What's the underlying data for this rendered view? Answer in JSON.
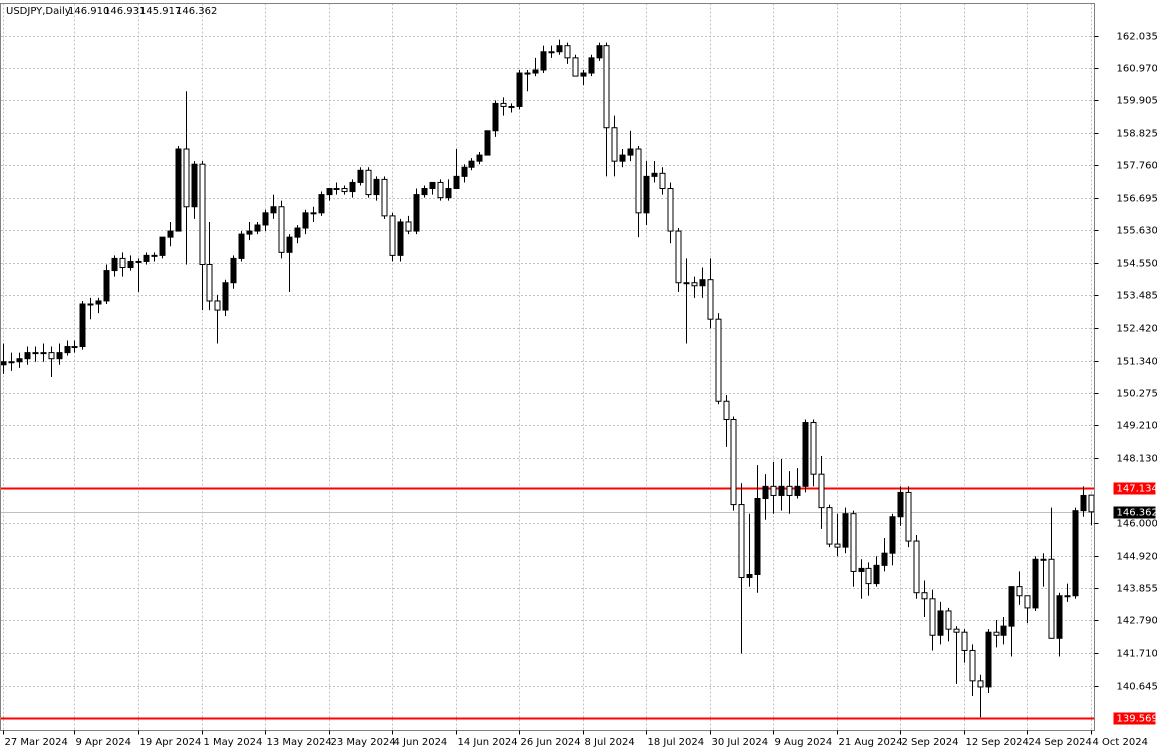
{
  "chart_data": {
    "type": "candlestick",
    "header": {
      "symbol": "USDJPY,Daily",
      "values": [
        "146.910",
        "146.931",
        "145.917",
        "146.362"
      ]
    },
    "ylim": [
      139.166,
      163.088
    ],
    "yticks": [
      162.035,
      {
        "value": 160.97,
        "label": "160.970"
      },
      159.905,
      158.825,
      {
        "value": 157.76,
        "label": "157.760"
      },
      156.695,
      {
        "value": 155.63,
        "label": "155.630"
      },
      {
        "value": 154.55,
        "label": "154.550"
      },
      153.485,
      {
        "value": 152.42,
        "label": "152.420"
      },
      {
        "value": 151.34,
        "label": "151.340"
      },
      150.275,
      {
        "value": 149.21,
        "label": "149.210"
      },
      {
        "value": 148.13,
        "label": "148.130"
      },
      {
        "value": 146,
        "label": "146.000"
      },
      {
        "value": 144.92,
        "label": "144.920"
      },
      143.855,
      {
        "value": 142.79,
        "label": "142.790"
      },
      {
        "value": 141.71,
        "label": "141.710"
      },
      140.645
    ],
    "grid": true,
    "bull_color": "#000000",
    "bear_color": "#ffffff",
    "hlines": [
      {
        "value": 147.134,
        "color": "#ff0000",
        "width": 2
      },
      {
        "value": 139.569,
        "color": "#ff0000",
        "width": 2
      },
      {
        "value": 146.362,
        "color": "#c0c0c0",
        "width": 1,
        "label_color": "#000000"
      }
    ],
    "categories": [
      "27 Mar 2024",
      null,
      null,
      null,
      null,
      null,
      null,
      null,
      null,
      "9 Apr 2024",
      null,
      null,
      null,
      null,
      null,
      null,
      null,
      "19 Apr 2024",
      null,
      null,
      null,
      null,
      null,
      null,
      null,
      "1 May 2024",
      null,
      null,
      null,
      null,
      null,
      null,
      null,
      "13 May 2024",
      null,
      null,
      null,
      null,
      null,
      null,
      null,
      "23 May 2024",
      null,
      null,
      null,
      null,
      null,
      null,
      null,
      "4 Jun 2024",
      null,
      null,
      null,
      null,
      null,
      null,
      null,
      "14 Jun 2024",
      null,
      null,
      null,
      null,
      null,
      null,
      null,
      "26 Jun 2024",
      null,
      null,
      null,
      null,
      null,
      null,
      null,
      "8 Jul 2024",
      null,
      null,
      null,
      null,
      null,
      null,
      null,
      "18 Jul 2024",
      null,
      null,
      null,
      null,
      null,
      null,
      null,
      "30 Jul 2024",
      null,
      null,
      null,
      null,
      null,
      null,
      null,
      "9 Aug 2024",
      null,
      null,
      null,
      null,
      null,
      null,
      null,
      "21 Aug 2024",
      null,
      null,
      null,
      null,
      null,
      null,
      null,
      "2 Sep 2024",
      null,
      null,
      null,
      null,
      null,
      null,
      null,
      "12 Sep 2024",
      null,
      null,
      null,
      null,
      null,
      null,
      null,
      "24 Sep 2024",
      null,
      null,
      null,
      null,
      null,
      null,
      null,
      "4 Oct 2024"
    ],
    "ohlc": [
      [
        151.2,
        151.9,
        150.9,
        151.3
      ],
      [
        151.3,
        151.6,
        151.0,
        151.3
      ],
      [
        151.3,
        151.6,
        151.1,
        151.4
      ],
      [
        151.4,
        151.8,
        151.2,
        151.6
      ],
      [
        151.6,
        151.8,
        151.3,
        151.6
      ],
      [
        151.6,
        151.9,
        151.3,
        151.6
      ],
      [
        151.6,
        151.8,
        150.8,
        151.4
      ],
      [
        151.4,
        151.9,
        151.2,
        151.6
      ],
      [
        151.6,
        152.0,
        151.5,
        151.8
      ],
      [
        151.8,
        152.0,
        151.6,
        151.8
      ],
      [
        151.8,
        153.3,
        151.7,
        153.2
      ],
      [
        153.2,
        153.4,
        152.7,
        153.2
      ],
      [
        153.2,
        153.4,
        152.9,
        153.3
      ],
      [
        153.3,
        154.5,
        153.2,
        154.3
      ],
      [
        154.3,
        154.8,
        154.1,
        154.7
      ],
      [
        154.7,
        154.9,
        154.1,
        154.4
      ],
      [
        154.4,
        154.8,
        154.3,
        154.6
      ],
      [
        154.6,
        154.7,
        153.6,
        154.6
      ],
      [
        154.6,
        154.9,
        154.5,
        154.8
      ],
      [
        154.8,
        154.9,
        154.6,
        154.8
      ],
      [
        154.8,
        155.4,
        154.7,
        155.4
      ],
      [
        155.4,
        155.9,
        155.1,
        155.6
      ],
      [
        155.6,
        158.4,
        155.6,
        158.3
      ],
      [
        158.3,
        160.2,
        154.5,
        156.4
      ],
      [
        156.4,
        157.9,
        156.0,
        157.8
      ],
      [
        157.8,
        157.9,
        153.0,
        154.5
      ],
      [
        154.5,
        155.9,
        153.0,
        153.3
      ],
      [
        153.3,
        153.5,
        151.9,
        153.0
      ],
      [
        153.0,
        154.0,
        152.8,
        153.9
      ],
      [
        153.9,
        154.8,
        153.7,
        154.7
      ],
      [
        154.7,
        155.6,
        154.6,
        155.5
      ],
      [
        155.5,
        155.9,
        155.3,
        155.6
      ],
      [
        155.6,
        155.9,
        155.5,
        155.8
      ],
      [
        155.8,
        156.3,
        155.6,
        156.2
      ],
      [
        156.2,
        156.8,
        156.0,
        156.4
      ],
      [
        156.4,
        156.6,
        154.7,
        154.9
      ],
      [
        154.9,
        155.5,
        153.6,
        155.4
      ],
      [
        155.4,
        155.8,
        155.2,
        155.7
      ],
      [
        155.7,
        156.3,
        155.5,
        156.2
      ],
      [
        156.2,
        156.4,
        155.9,
        156.2
      ],
      [
        156.2,
        156.9,
        156.1,
        156.8
      ],
      [
        156.8,
        157.0,
        156.6,
        157.0
      ],
      [
        157.0,
        157.2,
        156.8,
        157.0
      ],
      [
        157.0,
        157.1,
        156.8,
        156.9
      ],
      [
        156.9,
        157.3,
        156.7,
        157.2
      ],
      [
        157.2,
        157.7,
        157.1,
        157.6
      ],
      [
        157.6,
        157.7,
        156.7,
        156.8
      ],
      [
        156.8,
        157.4,
        156.6,
        157.3
      ],
      [
        157.3,
        157.4,
        156.0,
        156.1
      ],
      [
        156.1,
        156.2,
        154.6,
        154.8
      ],
      [
        154.8,
        156.0,
        154.6,
        155.9
      ],
      [
        155.9,
        156.1,
        155.5,
        155.6
      ],
      [
        155.6,
        157.0,
        155.5,
        156.8
      ],
      [
        156.8,
        157.1,
        156.7,
        157.0
      ],
      [
        157.0,
        157.2,
        156.8,
        157.2
      ],
      [
        157.2,
        157.3,
        156.6,
        156.7
      ],
      [
        156.7,
        157.3,
        156.6,
        157.0
      ],
      [
        157.0,
        158.3,
        157.0,
        157.4
      ],
      [
        157.4,
        157.8,
        157.2,
        157.7
      ],
      [
        157.7,
        158.0,
        157.6,
        157.9
      ],
      [
        157.9,
        158.2,
        157.8,
        158.1
      ],
      [
        158.1,
        158.9,
        158.1,
        158.9
      ],
      [
        158.9,
        159.9,
        158.7,
        159.8
      ],
      [
        159.8,
        160.0,
        159.4,
        159.7
      ],
      [
        159.7,
        159.8,
        159.5,
        159.7
      ],
      [
        159.7,
        160.9,
        159.6,
        160.8
      ],
      [
        160.8,
        160.9,
        160.2,
        160.8
      ],
      [
        160.8,
        161.3,
        160.7,
        160.9
      ],
      [
        160.9,
        161.7,
        160.8,
        161.5
      ],
      [
        161.5,
        161.7,
        161.3,
        161.5
      ],
      [
        161.5,
        161.9,
        161.4,
        161.7
      ],
      [
        161.7,
        161.8,
        161.1,
        161.3
      ],
      [
        161.3,
        161.4,
        160.7,
        160.7
      ],
      [
        160.7,
        160.9,
        160.4,
        160.8
      ],
      [
        160.8,
        161.4,
        160.7,
        161.3
      ],
      [
        161.3,
        161.8,
        161.2,
        161.7
      ],
      [
        161.7,
        161.8,
        157.4,
        159.0
      ],
      [
        159.0,
        159.4,
        157.4,
        157.9
      ],
      [
        157.9,
        158.3,
        157.7,
        158.1
      ],
      [
        158.1,
        158.9,
        157.9,
        158.3
      ],
      [
        158.3,
        158.4,
        155.4,
        156.2
      ],
      [
        156.2,
        157.9,
        155.8,
        157.4
      ],
      [
        157.4,
        157.9,
        157.2,
        157.5
      ],
      [
        157.5,
        157.7,
        156.8,
        157.0
      ],
      [
        157.0,
        157.2,
        155.2,
        155.6
      ],
      [
        155.6,
        155.7,
        153.6,
        153.9
      ],
      [
        153.9,
        154.7,
        151.9,
        153.9
      ],
      [
        153.9,
        154.1,
        153.4,
        153.8
      ],
      [
        153.8,
        154.4,
        153.4,
        154.0
      ],
      [
        154.0,
        154.7,
        152.4,
        152.7
      ],
      [
        152.7,
        152.9,
        149.9,
        150.0
      ],
      [
        150.0,
        150.2,
        148.5,
        149.4
      ],
      [
        149.4,
        149.5,
        146.4,
        146.6
      ],
      [
        146.6,
        147.3,
        141.7,
        144.2
      ],
      [
        144.2,
        146.3,
        143.9,
        144.3
      ],
      [
        144.3,
        147.9,
        143.7,
        146.8
      ],
      [
        146.8,
        147.6,
        146.1,
        147.2
      ],
      [
        147.2,
        148.0,
        146.3,
        146.9
      ],
      [
        146.9,
        148.1,
        146.4,
        147.2
      ],
      [
        147.2,
        147.7,
        146.3,
        146.9
      ],
      [
        146.9,
        147.8,
        146.8,
        147.2
      ],
      [
        147.2,
        149.4,
        147.0,
        149.3
      ],
      [
        149.3,
        149.4,
        147.2,
        147.6
      ],
      [
        147.6,
        148.2,
        145.8,
        146.5
      ],
      [
        146.5,
        146.6,
        145.2,
        145.3
      ],
      [
        145.3,
        146.3,
        144.9,
        145.2
      ],
      [
        145.2,
        146.5,
        145.0,
        146.3
      ],
      [
        146.3,
        146.4,
        143.9,
        144.4
      ],
      [
        144.4,
        144.8,
        143.5,
        144.5
      ],
      [
        144.5,
        144.7,
        143.6,
        144.0
      ],
      [
        144.0,
        144.9,
        143.9,
        144.6
      ],
      [
        144.6,
        145.5,
        144.4,
        145.0
      ],
      [
        145.0,
        146.3,
        144.6,
        146.2
      ],
      [
        146.2,
        147.2,
        145.9,
        147.0
      ],
      [
        147.0,
        147.2,
        145.2,
        145.4
      ],
      [
        145.4,
        145.6,
        143.5,
        143.7
      ],
      [
        143.7,
        144.1,
        142.9,
        143.5
      ],
      [
        143.5,
        143.8,
        141.8,
        142.3
      ],
      [
        142.3,
        143.4,
        142.0,
        143.1
      ],
      [
        143.1,
        143.2,
        142.1,
        142.5
      ],
      [
        142.5,
        142.6,
        140.7,
        142.4
      ],
      [
        142.4,
        142.5,
        141.4,
        141.8
      ],
      [
        141.8,
        142.0,
        140.3,
        140.8
      ],
      [
        140.8,
        141.0,
        139.6,
        140.6
      ],
      [
        140.6,
        142.5,
        140.4,
        142.4
      ],
      [
        142.4,
        142.8,
        141.9,
        142.3
      ],
      [
        142.3,
        142.9,
        142.0,
        142.6
      ],
      [
        142.6,
        143.9,
        141.6,
        143.9
      ],
      [
        143.9,
        144.4,
        143.3,
        143.6
      ],
      [
        143.6,
        143.6,
        142.7,
        143.2
      ],
      [
        143.2,
        144.9,
        143.1,
        144.8
      ],
      [
        144.8,
        145.0,
        143.9,
        144.8
      ],
      [
        144.8,
        146.5,
        142.2,
        142.2
      ],
      [
        142.2,
        143.7,
        141.6,
        143.6
      ],
      [
        143.6,
        144.0,
        143.4,
        143.6
      ],
      [
        143.6,
        146.5,
        143.5,
        146.4
      ],
      [
        146.4,
        147.2,
        146.2,
        146.9
      ],
      [
        146.91,
        146.931,
        145.917,
        146.362
      ]
    ]
  }
}
